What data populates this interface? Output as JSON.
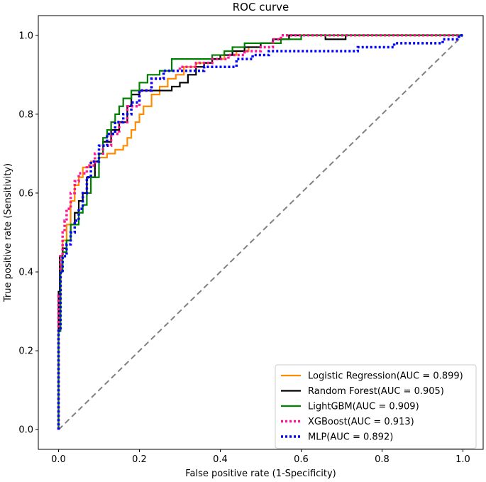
{
  "chart_data": {
    "type": "line",
    "title": "ROC curve",
    "xlabel": "False positive rate (1-Specificity)",
    "ylabel": "True positive rate (Sensitivity)",
    "xlim": [
      -0.05,
      1.05
    ],
    "ylim": [
      -0.05,
      1.05
    ],
    "xticks": [
      0.0,
      0.2,
      0.4,
      0.6,
      0.8,
      1.0
    ],
    "yticks": [
      0.0,
      0.2,
      0.4,
      0.6,
      0.8,
      1.0
    ],
    "xtick_labels": [
      "0.0",
      "0.2",
      "0.4",
      "0.6",
      "0.8",
      "1.0"
    ],
    "ytick_labels": [
      "0.0",
      "0.2",
      "0.4",
      "0.6",
      "0.8",
      "1.0"
    ],
    "grid": false,
    "legend_position": "lower-right",
    "diagonal": {
      "x": [
        0,
        1
      ],
      "y": [
        0,
        1
      ],
      "color": "#808080",
      "style": "dashed"
    },
    "series": [
      {
        "name": "Logistic Regression(AUC = 0.899)",
        "color": "#ff8c00",
        "style": "solid",
        "x": [
          0,
          0,
          0.005,
          0.005,
          0.01,
          0.01,
          0.02,
          0.02,
          0.03,
          0.03,
          0.04,
          0.04,
          0.05,
          0.05,
          0.06,
          0.06,
          0.08,
          0.08,
          0.1,
          0.1,
          0.12,
          0.12,
          0.14,
          0.14,
          0.16,
          0.16,
          0.17,
          0.17,
          0.18,
          0.18,
          0.19,
          0.19,
          0.2,
          0.2,
          0.21,
          0.21,
          0.23,
          0.23,
          0.25,
          0.25,
          0.27,
          0.27,
          0.29,
          0.29,
          0.31,
          0.31,
          0.34,
          0.34,
          0.38,
          0.38,
          0.41,
          0.41,
          0.44,
          0.44,
          0.47,
          0.47,
          0.5,
          0.5,
          0.53,
          0.53,
          0.57,
          0.57,
          1.0
        ],
        "y": [
          0,
          0.3,
          0.3,
          0.42,
          0.42,
          0.48,
          0.48,
          0.52,
          0.52,
          0.58,
          0.58,
          0.62,
          0.62,
          0.64,
          0.64,
          0.665,
          0.665,
          0.68,
          0.68,
          0.69,
          0.69,
          0.7,
          0.7,
          0.71,
          0.71,
          0.72,
          0.72,
          0.74,
          0.74,
          0.76,
          0.76,
          0.78,
          0.78,
          0.8,
          0.8,
          0.82,
          0.82,
          0.85,
          0.85,
          0.87,
          0.87,
          0.89,
          0.89,
          0.9,
          0.9,
          0.92,
          0.92,
          0.93,
          0.93,
          0.94,
          0.94,
          0.95,
          0.95,
          0.96,
          0.96,
          0.97,
          0.97,
          0.98,
          0.98,
          0.99,
          0.99,
          1.0,
          1.0
        ]
      },
      {
        "name": "Random Forest(AUC = 0.905)",
        "color": "#000000",
        "style": "solid",
        "x": [
          0,
          0,
          0.003,
          0.003,
          0.01,
          0.01,
          0.02,
          0.02,
          0.03,
          0.03,
          0.04,
          0.04,
          0.05,
          0.05,
          0.06,
          0.06,
          0.07,
          0.07,
          0.09,
          0.09,
          0.1,
          0.1,
          0.11,
          0.11,
          0.13,
          0.13,
          0.15,
          0.15,
          0.17,
          0.17,
          0.18,
          0.18,
          0.2,
          0.2,
          0.22,
          0.22,
          0.24,
          0.24,
          0.26,
          0.26,
          0.28,
          0.28,
          0.3,
          0.3,
          0.32,
          0.32,
          0.34,
          0.34,
          0.36,
          0.36,
          0.38,
          0.38,
          0.4,
          0.4,
          0.43,
          0.43,
          0.46,
          0.46,
          0.5,
          0.5,
          0.53,
          0.53,
          0.57,
          0.57,
          0.62,
          0.62,
          0.66,
          0.66,
          0.71,
          0.71,
          1.0
        ],
        "y": [
          0,
          0.35,
          0.35,
          0.44,
          0.44,
          0.46,
          0.46,
          0.48,
          0.48,
          0.52,
          0.52,
          0.55,
          0.55,
          0.58,
          0.58,
          0.6,
          0.6,
          0.64,
          0.64,
          0.68,
          0.68,
          0.7,
          0.7,
          0.73,
          0.73,
          0.76,
          0.76,
          0.78,
          0.78,
          0.82,
          0.82,
          0.85,
          0.85,
          0.86,
          0.86,
          0.86,
          0.86,
          0.86,
          0.86,
          0.86,
          0.86,
          0.87,
          0.87,
          0.88,
          0.88,
          0.9,
          0.9,
          0.92,
          0.92,
          0.93,
          0.93,
          0.94,
          0.94,
          0.95,
          0.95,
          0.96,
          0.96,
          0.97,
          0.97,
          0.98,
          0.98,
          0.99,
          0.99,
          1.0,
          1.0,
          1.0,
          1.0,
          0.99,
          0.99,
          1.0,
          1.0
        ]
      },
      {
        "name": "LightGBM(AUC = 0.909)",
        "color": "#008000",
        "style": "solid",
        "x": [
          0,
          0,
          0.005,
          0.005,
          0.01,
          0.01,
          0.02,
          0.02,
          0.03,
          0.03,
          0.05,
          0.05,
          0.06,
          0.06,
          0.07,
          0.07,
          0.08,
          0.08,
          0.1,
          0.1,
          0.11,
          0.11,
          0.12,
          0.12,
          0.13,
          0.13,
          0.14,
          0.14,
          0.15,
          0.15,
          0.16,
          0.16,
          0.18,
          0.18,
          0.2,
          0.2,
          0.22,
          0.22,
          0.25,
          0.25,
          0.28,
          0.28,
          0.3,
          0.3,
          0.33,
          0.33,
          0.36,
          0.36,
          0.38,
          0.38,
          0.41,
          0.41,
          0.43,
          0.43,
          0.46,
          0.46,
          0.5,
          0.5,
          0.55,
          0.55,
          0.6,
          0.6,
          1.0
        ],
        "y": [
          0,
          0.25,
          0.25,
          0.4,
          0.4,
          0.45,
          0.45,
          0.48,
          0.48,
          0.52,
          0.52,
          0.55,
          0.55,
          0.57,
          0.57,
          0.6,
          0.6,
          0.64,
          0.64,
          0.7,
          0.7,
          0.74,
          0.74,
          0.76,
          0.76,
          0.78,
          0.78,
          0.8,
          0.8,
          0.82,
          0.82,
          0.84,
          0.84,
          0.86,
          0.86,
          0.88,
          0.88,
          0.9,
          0.9,
          0.91,
          0.91,
          0.94,
          0.94,
          0.94,
          0.94,
          0.94,
          0.94,
          0.94,
          0.94,
          0.95,
          0.95,
          0.96,
          0.96,
          0.97,
          0.97,
          0.98,
          0.98,
          0.98,
          0.98,
          0.99,
          0.99,
          1.0,
          1.0
        ]
      },
      {
        "name": "XGBoost(AUC = 0.913)",
        "color": "#ff1493",
        "style": "dotted",
        "x": [
          0,
          0,
          0.005,
          0.005,
          0.01,
          0.01,
          0.015,
          0.015,
          0.02,
          0.02,
          0.03,
          0.03,
          0.04,
          0.04,
          0.05,
          0.05,
          0.07,
          0.07,
          0.09,
          0.09,
          0.11,
          0.11,
          0.13,
          0.13,
          0.15,
          0.15,
          0.17,
          0.17,
          0.2,
          0.2,
          0.23,
          0.23,
          0.26,
          0.26,
          0.3,
          0.3,
          0.34,
          0.34,
          0.38,
          0.38,
          0.42,
          0.42,
          0.46,
          0.46,
          0.5,
          0.5,
          0.53,
          0.53,
          0.55,
          0.55,
          1.0
        ],
        "y": [
          0,
          0.34,
          0.34,
          0.44,
          0.44,
          0.5,
          0.5,
          0.53,
          0.53,
          0.56,
          0.56,
          0.6,
          0.6,
          0.63,
          0.63,
          0.65,
          0.65,
          0.67,
          0.67,
          0.7,
          0.7,
          0.72,
          0.72,
          0.75,
          0.75,
          0.78,
          0.78,
          0.82,
          0.82,
          0.86,
          0.86,
          0.89,
          0.89,
          0.91,
          0.91,
          0.92,
          0.92,
          0.93,
          0.93,
          0.94,
          0.94,
          0.95,
          0.95,
          0.96,
          0.96,
          0.97,
          0.97,
          0.99,
          0.99,
          1.0,
          1.0
        ]
      },
      {
        "name": "MLP(AUC = 0.892)",
        "color": "#0000ff",
        "style": "dotted",
        "x": [
          0,
          0,
          0.005,
          0.005,
          0.01,
          0.01,
          0.02,
          0.02,
          0.03,
          0.03,
          0.04,
          0.04,
          0.05,
          0.05,
          0.06,
          0.06,
          0.07,
          0.07,
          0.08,
          0.08,
          0.1,
          0.1,
          0.12,
          0.12,
          0.14,
          0.14,
          0.16,
          0.16,
          0.18,
          0.18,
          0.2,
          0.2,
          0.23,
          0.23,
          0.26,
          0.26,
          0.3,
          0.3,
          0.36,
          0.36,
          0.44,
          0.44,
          0.48,
          0.48,
          0.52,
          0.52,
          0.6,
          0.6,
          0.74,
          0.74,
          0.83,
          0.83,
          0.95,
          0.95,
          0.99,
          0.99,
          1.0
        ],
        "y": [
          0,
          0.25,
          0.25,
          0.4,
          0.4,
          0.44,
          0.44,
          0.47,
          0.47,
          0.5,
          0.5,
          0.53,
          0.53,
          0.56,
          0.56,
          0.6,
          0.6,
          0.64,
          0.64,
          0.68,
          0.68,
          0.72,
          0.72,
          0.75,
          0.75,
          0.78,
          0.78,
          0.8,
          0.8,
          0.83,
          0.83,
          0.86,
          0.86,
          0.89,
          0.89,
          0.91,
          0.91,
          0.91,
          0.91,
          0.92,
          0.92,
          0.94,
          0.94,
          0.95,
          0.95,
          0.96,
          0.96,
          0.96,
          0.96,
          0.97,
          0.97,
          0.98,
          0.98,
          0.99,
          0.99,
          1.0,
          1.0
        ]
      }
    ]
  }
}
